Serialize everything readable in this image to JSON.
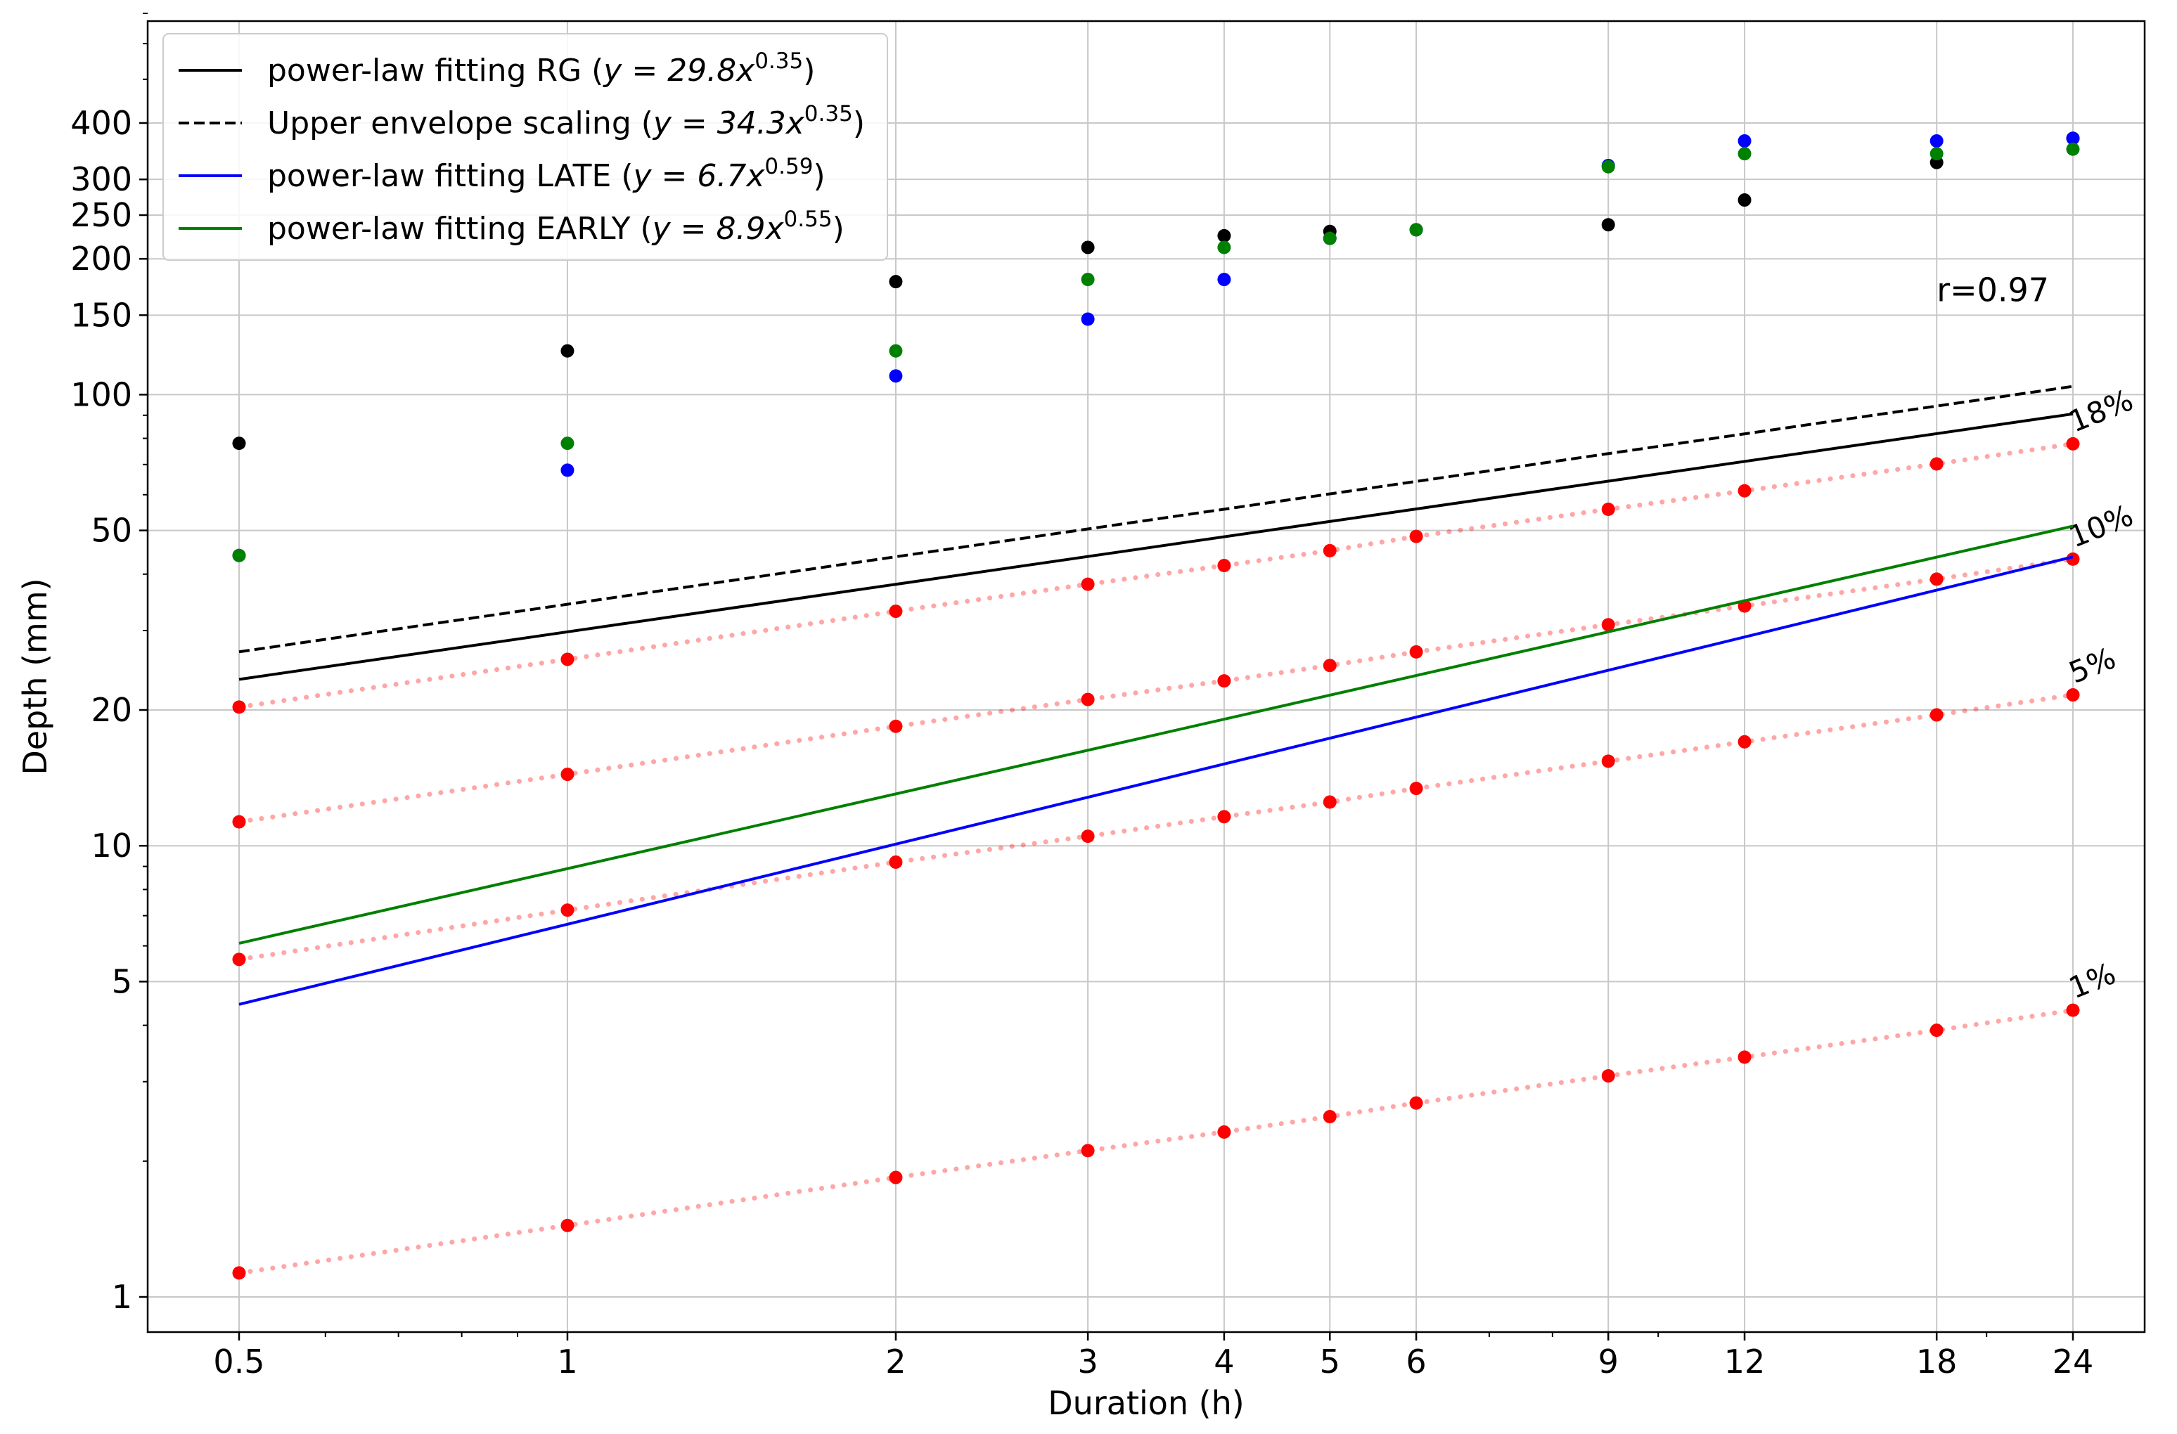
{
  "chart_data": {
    "type": "line",
    "title": "",
    "xlabel": "Duration (h)",
    "ylabel": "Depth (mm)",
    "xscale": "log",
    "yscale": "log",
    "xlim": [
      0.42,
      34
    ],
    "ylim": [
      0.85,
      780
    ],
    "grid": true,
    "legend_position": "top-left",
    "x_ticks": [
      0.5,
      1,
      2,
      3,
      4,
      5,
      6,
      9,
      12,
      18,
      24
    ],
    "x_tick_labels": [
      "0.5",
      "1",
      "2",
      "3",
      "4",
      "5",
      "6",
      "9",
      "12",
      "18",
      "24"
    ],
    "y_ticks": [
      1,
      5,
      10,
      20,
      50,
      100,
      150,
      200,
      250,
      300,
      400
    ],
    "y_tick_labels": [
      "1",
      "5",
      "10",
      "20",
      "50",
      "100",
      "150",
      "200",
      "250",
      "300",
      "400"
    ],
    "durations": [
      0.5,
      1,
      2,
      3,
      4,
      5,
      6,
      9,
      12,
      18,
      24
    ],
    "fit_lines": [
      {
        "name": "power-law fitting RG",
        "a": 29.8,
        "b": 0.35,
        "color": "#000000",
        "dash": "solid",
        "x_range": [
          0.5,
          24
        ]
      },
      {
        "name": "Upper envelope scaling",
        "a": 34.3,
        "b": 0.35,
        "color": "#000000",
        "dash": "dashed",
        "x_range": [
          0.5,
          24
        ]
      },
      {
        "name": "power-law fitting LATE",
        "a": 6.7,
        "b": 0.59,
        "color": "#0000ff",
        "dash": "solid",
        "x_range": [
          0.5,
          24
        ]
      },
      {
        "name": "power-law fitting  EARLY",
        "a": 8.9,
        "b": 0.55,
        "color": "#008000",
        "dash": "solid",
        "x_range": [
          0.5,
          24
        ]
      }
    ],
    "legend": [
      {
        "prefix": "power-law fitting RG (",
        "eq": "y = 29.8x",
        "exp": "0.35",
        "suffix": ")",
        "color": "#000000",
        "dash": "solid"
      },
      {
        "prefix": "Upper envelope scaling (",
        "eq": "y = 34.3x",
        "exp": "0.35",
        "suffix": ")",
        "color": "#000000",
        "dash": "dashed"
      },
      {
        "prefix": "power-law fitting LATE (",
        "eq": "y = 6.7x",
        "exp": "0.59",
        "suffix": ")",
        "color": "#0000ff",
        "dash": "solid"
      },
      {
        "prefix": "power-law fitting  EARLY (",
        "eq": "y = 8.9x",
        "exp": "0.55",
        "suffix": ")",
        "color": "#008000",
        "dash": "solid"
      }
    ],
    "scatter_series": [
      {
        "name": "RG",
        "color": "#000000",
        "x": [
          0.5,
          1,
          2,
          3,
          4,
          5,
          6,
          9,
          12,
          18,
          24
        ],
        "y": [
          78,
          125,
          178,
          212,
          225,
          230,
          232,
          238,
          270,
          327,
          370
        ]
      },
      {
        "name": "LATE",
        "color": "#0000ff",
        "x": [
          0.5,
          1,
          2,
          3,
          4,
          5,
          6,
          9,
          12,
          18,
          24
        ],
        "y": [
          44,
          68,
          110,
          147,
          180,
          222,
          232,
          322,
          365,
          365,
          370
        ]
      },
      {
        "name": "EARLY",
        "color": "#008000",
        "x": [
          0.5,
          1,
          2,
          3,
          4,
          5,
          6,
          9,
          12,
          18,
          24
        ],
        "y": [
          44,
          78,
          125,
          180,
          212,
          222,
          232,
          320,
          342,
          342,
          350
        ]
      }
    ],
    "percent_series": [
      {
        "label": "18%",
        "color": "#ff0000",
        "x": [
          0.5,
          1,
          2,
          3,
          4,
          5,
          6,
          9,
          12,
          18,
          24
        ],
        "y": [
          20.3,
          25.9,
          33.1,
          38.0,
          41.8,
          45.1,
          48.5,
          55.7,
          61.2,
          70.2,
          77.8
        ]
      },
      {
        "label": "10%",
        "color": "#ff0000",
        "x": [
          0.5,
          1,
          2,
          3,
          4,
          5,
          6,
          9,
          12,
          18,
          24
        ],
        "y": [
          11.3,
          14.4,
          18.4,
          21.1,
          23.2,
          25.1,
          26.9,
          30.9,
          34.0,
          39.0,
          43.2
        ]
      },
      {
        "label": "5%",
        "color": "#ff0000",
        "x": [
          0.5,
          1,
          2,
          3,
          4,
          5,
          6,
          9,
          12,
          18,
          24
        ],
        "y": [
          5.6,
          7.2,
          9.2,
          10.5,
          11.6,
          12.5,
          13.4,
          15.4,
          17.0,
          19.5,
          21.6
        ]
      },
      {
        "label": "1%",
        "color": "#ff0000",
        "x": [
          0.5,
          1,
          2,
          3,
          4,
          5,
          6,
          9,
          12,
          18,
          24
        ],
        "y": [
          1.13,
          1.44,
          1.84,
          2.11,
          2.32,
          2.51,
          2.69,
          3.09,
          3.4,
          3.9,
          4.32
        ]
      }
    ],
    "annotations": [
      {
        "text": "r=0.97",
        "x": 18.0,
        "y": 160
      }
    ]
  }
}
